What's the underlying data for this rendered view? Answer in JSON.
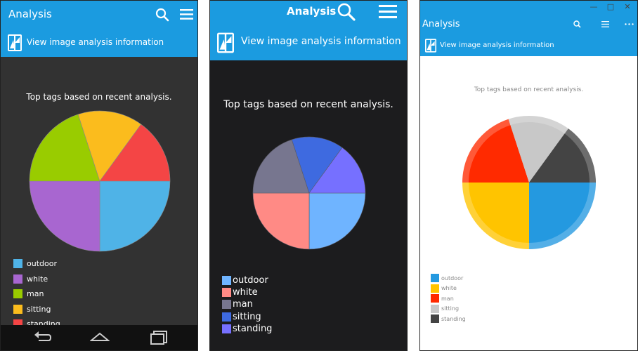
{
  "panels": [
    {
      "app_title": "Analysis",
      "info_label": "View image analysis information",
      "caption": "Top tags based on recent analysis.",
      "legend": [
        "outdoor",
        "white",
        "man",
        "sitting",
        "standing"
      ],
      "accent": "#1b9be0",
      "background": "#323232",
      "icons": [
        "search-icon",
        "menu-icon",
        "image-info-icon",
        "back-icon",
        "home-icon",
        "recents-icon"
      ]
    },
    {
      "app_title": "Analysis",
      "info_label": "View image analysis information",
      "caption": "Top tags based on recent analysis.",
      "legend": [
        "outdoor",
        "white",
        "man",
        "sitting",
        "standing"
      ],
      "accent": "#1b9be0",
      "background": "#1c1c1e",
      "icons": [
        "search-icon",
        "menu-icon",
        "image-info-icon"
      ]
    },
    {
      "app_title": "Analysis",
      "info_label": "View image analysis information",
      "caption": "Top tags based on recent analysis.",
      "legend": [
        "outdoor",
        "white",
        "man",
        "sitting",
        "standing"
      ],
      "accent": "#1b9be0",
      "background": "#ffffff",
      "icons": [
        "search-icon",
        "menu-icon",
        "more-icon",
        "image-info-icon",
        "minimize-icon",
        "maximize-icon",
        "close-icon"
      ]
    }
  ],
  "chart_data": [
    {
      "type": "pie",
      "title": "Top tags based on recent analysis.",
      "labels": [
        "outdoor",
        "white",
        "man",
        "sitting",
        "standing"
      ],
      "values": [
        25,
        25,
        20,
        15,
        15
      ],
      "colors": [
        "#4fb3e7",
        "#a866d0",
        "#99cc00",
        "#fbbc1d",
        "#f44545"
      ]
    },
    {
      "type": "pie",
      "title": "Top tags based on recent analysis.",
      "labels": [
        "outdoor",
        "white",
        "man",
        "sitting",
        "standing"
      ],
      "values": [
        25,
        25,
        20,
        15,
        15
      ],
      "colors": [
        "#6fb4ff",
        "#ff8a85",
        "#77768f",
        "#3e6ae0",
        "#7670ff"
      ]
    },
    {
      "type": "pie",
      "title": "Top tags based on recent analysis.",
      "labels": [
        "outdoor",
        "white",
        "man",
        "sitting",
        "standing"
      ],
      "values": [
        25,
        25,
        20,
        15,
        15
      ],
      "colors": [
        "#2499e0",
        "#ffc400",
        "#ff2a00",
        "#c8c8c8",
        "#444444"
      ]
    }
  ]
}
